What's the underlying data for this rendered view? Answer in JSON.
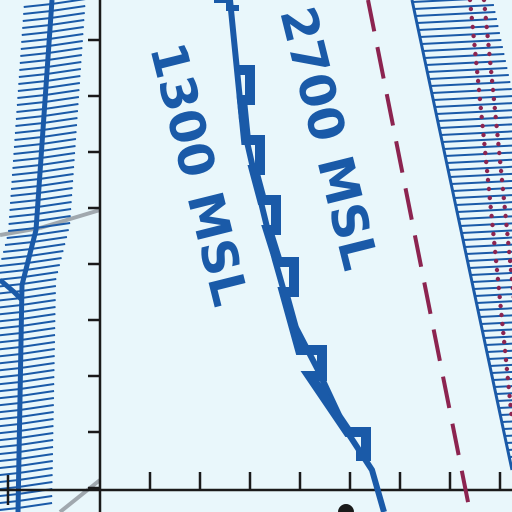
{
  "map": {
    "label_inner": "1300 MSL",
    "label_outer": "2700 MSL"
  },
  "colors": {
    "background": "#e9f7fb",
    "airspace_blue": "#1a5aa8",
    "boundary_magenta": "#8c2450",
    "grid_black": "#1a1a1a",
    "road_gray": "#a0a8ae"
  }
}
